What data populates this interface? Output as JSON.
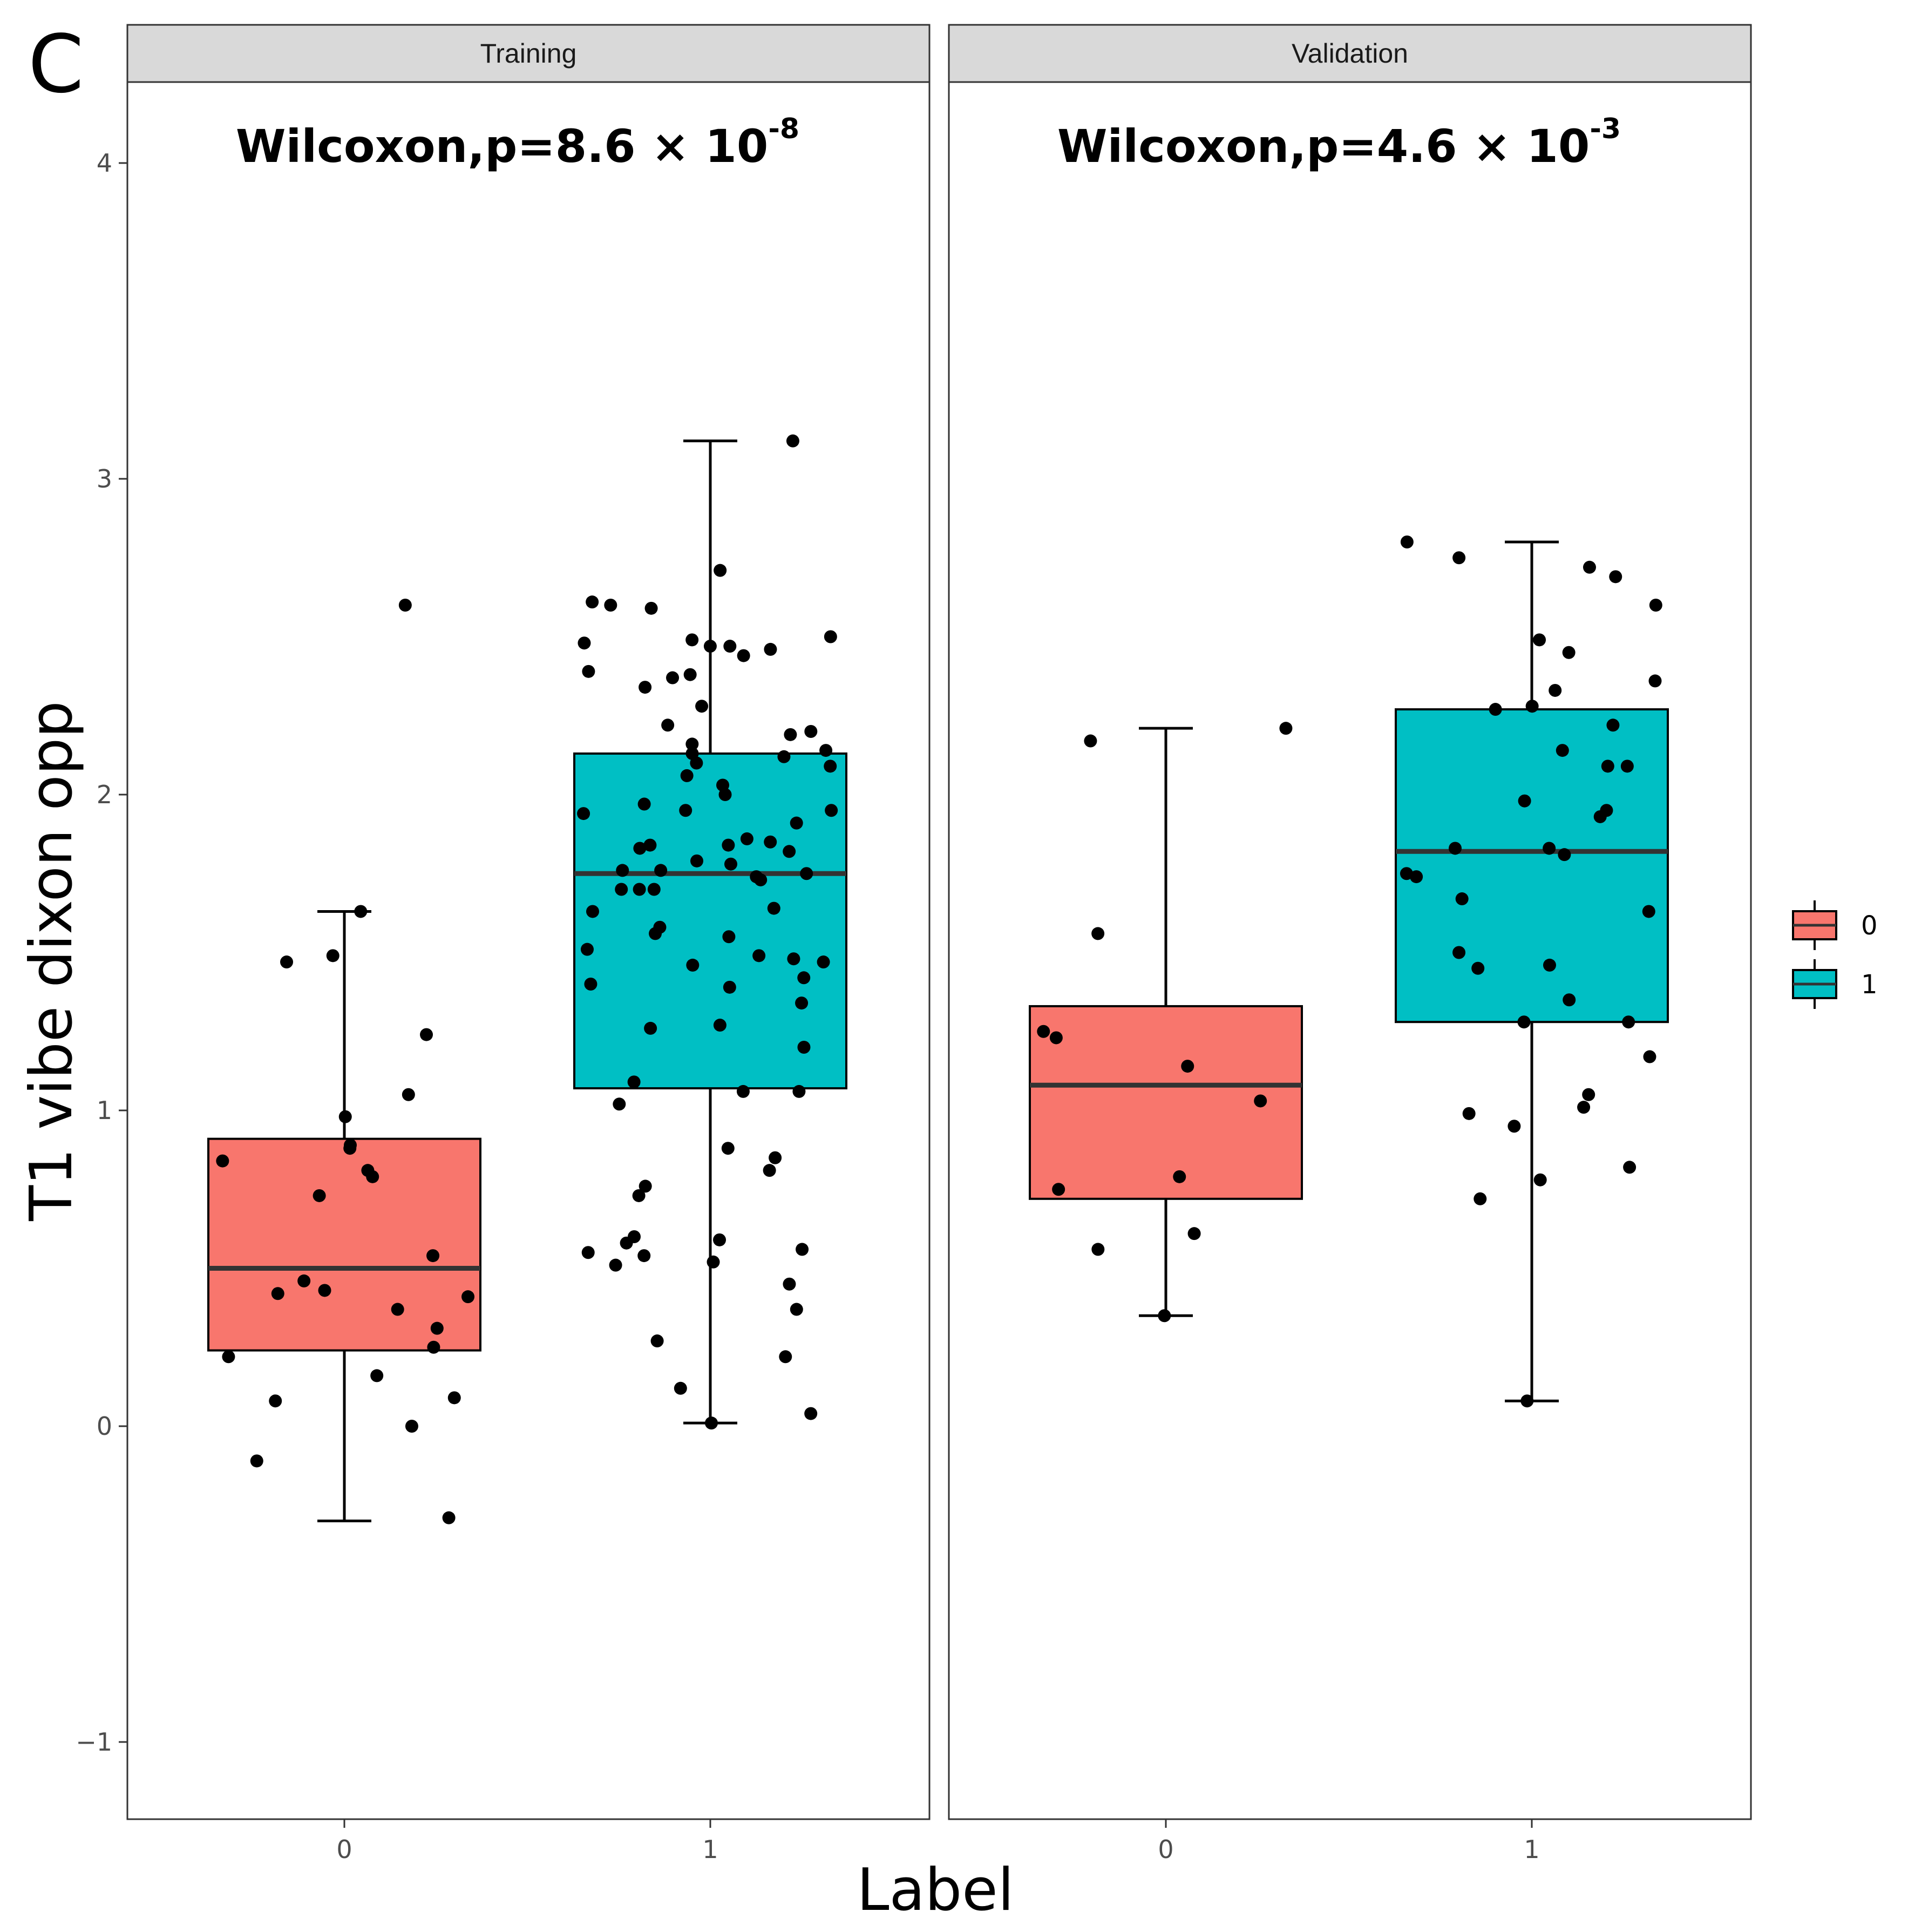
{
  "panel_letter": "C",
  "chart_data": {
    "type": "boxplot",
    "xlabel": "Label",
    "ylabel": "T1 vibe dixon opp",
    "ylim": [
      -1.25,
      4.35
    ],
    "y_ticks": [
      -1,
      0,
      1,
      2,
      3,
      4
    ],
    "y_tick_labels": [
      "−1",
      "0",
      "1",
      "2",
      "3",
      "4"
    ],
    "categories": [
      "0",
      "1"
    ],
    "colors": {
      "0": "#f8766d",
      "1": "#00bfc4"
    },
    "legend": {
      "title": "",
      "position": "right",
      "entries": [
        "0",
        "1"
      ]
    },
    "grid": false,
    "facets": [
      {
        "name": "Training",
        "annotation": {
          "prefix": "Wilcoxon,p=8.6 × 10",
          "exponent": "-8"
        },
        "groups": [
          {
            "label": "0",
            "whisker_low": -0.3,
            "q1": 0.24,
            "median": 0.5,
            "q3": 0.91,
            "whisker_high": 1.63,
            "points": [
              2.6,
              1.63,
              1.49,
              1.47,
              1.24,
              1.05,
              0.98,
              0.89,
              0.88,
              0.84,
              0.81,
              0.79,
              0.73,
              0.54,
              0.46,
              0.43,
              0.42,
              0.41,
              0.37,
              0.31,
              0.25,
              0.22,
              0.16,
              0.09,
              0.08,
              0.0,
              -0.11,
              -0.29
            ]
          },
          {
            "label": "1",
            "whisker_low": 0.01,
            "q1": 1.07,
            "median": 1.75,
            "q3": 2.13,
            "whisker_high": 3.12,
            "points": [
              3.12,
              2.71,
              2.61,
              2.6,
              2.59,
              2.5,
              2.49,
              2.48,
              2.47,
              2.47,
              2.46,
              2.44,
              2.39,
              2.38,
              2.37,
              2.34,
              2.28,
              2.22,
              2.2,
              2.19,
              2.16,
              2.14,
              2.13,
              2.12,
              2.1,
              2.09,
              2.06,
              2.03,
              2.0,
              1.97,
              1.95,
              1.95,
              1.94,
              1.91,
              1.86,
              1.85,
              1.84,
              1.84,
              1.83,
              1.82,
              1.79,
              1.78,
              1.76,
              1.76,
              1.75,
              1.74,
              1.73,
              1.7,
              1.7,
              1.7,
              1.64,
              1.63,
              1.58,
              1.56,
              1.55,
              1.51,
              1.49,
              1.48,
              1.47,
              1.46,
              1.42,
              1.4,
              1.39,
              1.34,
              1.27,
              1.26,
              1.2,
              1.09,
              1.06,
              1.06,
              1.02,
              0.88,
              0.85,
              0.81,
              0.76,
              0.73,
              0.6,
              0.59,
              0.58,
              0.56,
              0.55,
              0.54,
              0.52,
              0.51,
              0.45,
              0.37,
              0.27,
              0.22,
              0.12,
              0.04,
              0.01
            ]
          }
        ]
      },
      {
        "name": "Validation",
        "annotation": {
          "prefix": "Wilcoxon,p=4.6 × 10",
          "exponent": "-3"
        },
        "groups": [
          {
            "label": "0",
            "whisker_low": 0.35,
            "q1": 0.72,
            "median": 1.08,
            "q3": 1.33,
            "whisker_high": 2.21,
            "points": [
              2.21,
              2.17,
              1.56,
              1.25,
              1.23,
              1.14,
              1.03,
              0.79,
              0.75,
              0.61,
              0.56,
              0.35
            ]
          },
          {
            "label": "1",
            "whisker_low": 0.08,
            "q1": 1.28,
            "median": 1.82,
            "q3": 2.27,
            "whisker_high": 2.8,
            "points": [
              2.8,
              2.75,
              2.72,
              2.69,
              2.6,
              2.49,
              2.45,
              2.36,
              2.33,
              2.28,
              2.27,
              2.22,
              2.14,
              2.09,
              2.09,
              1.98,
              1.95,
              1.93,
              1.83,
              1.83,
              1.81,
              1.75,
              1.74,
              1.67,
              1.63,
              1.5,
              1.46,
              1.45,
              1.35,
              1.28,
              1.28,
              1.17,
              1.05,
              1.01,
              0.99,
              0.95,
              0.82,
              0.78,
              0.72,
              0.08
            ]
          }
        ]
      }
    ]
  }
}
